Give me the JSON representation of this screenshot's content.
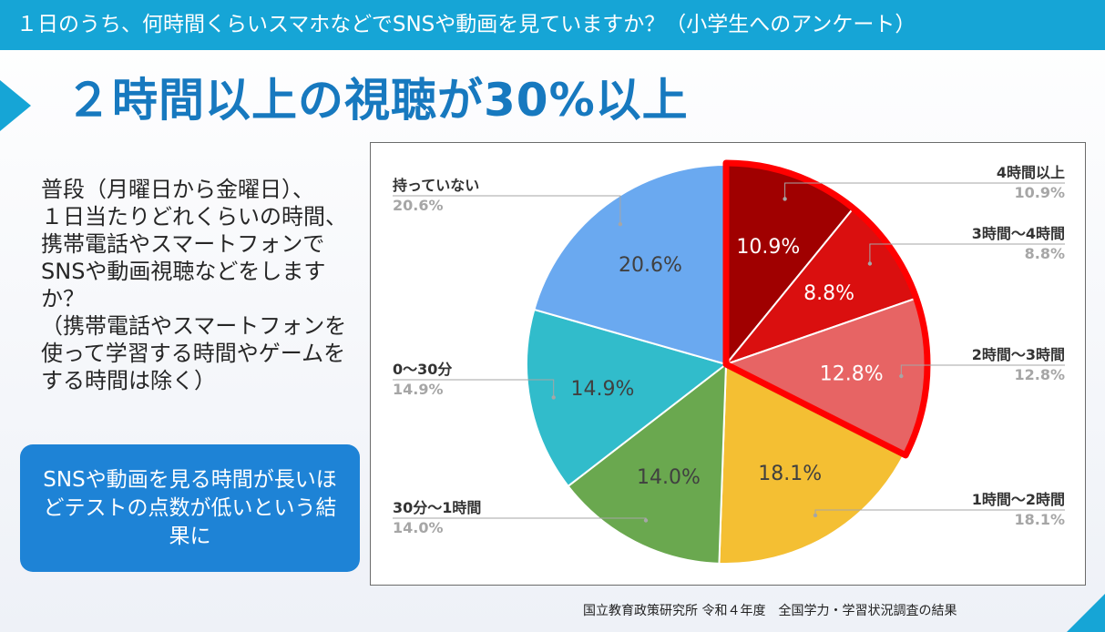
{
  "header": {
    "survey_title": "１日のうち、何時間くらいスマホなどでSNSや動画を見ていますか？（小学生へのアンケート）",
    "headline": "２時間以上の視聴が30%以上"
  },
  "question": {
    "text": "普段（月曜日から金曜日）、\n１日当たりどれくらいの時間、携帯電話やスマートフォンでSNSや動画視聴などをしますか？\n（携帯電話やスマートフォンを使って学習する時間やゲームをする時間は除く）"
  },
  "callout": {
    "text": "SNSや動画を見る時間が長いほどテストの点数が低いという結果に"
  },
  "source": "国立教育政策研究所 令和４年度　全国学力・学習状況調査の結果",
  "colors": {
    "accent": "#16a5d6",
    "headline": "#1779bf",
    "highlight_border": "#ff0000"
  },
  "chart_data": {
    "type": "pie",
    "start": "12 o'clock, clockwise",
    "highlighted": [
      "4時間以上",
      "3時間～4時間",
      "2時間～3時間"
    ],
    "slices": [
      {
        "label": "4時間以上",
        "value": 10.9,
        "display": "10.9%",
        "color": "#a00000"
      },
      {
        "label": "3時間～4時間",
        "value": 8.8,
        "display": "8.8%",
        "color": "#da0f0f"
      },
      {
        "label": "2時間～3時間",
        "value": 12.8,
        "display": "12.8%",
        "color": "#e76464"
      },
      {
        "label": "1時間～2時間",
        "value": 18.1,
        "display": "18.1%",
        "color": "#f4bf33"
      },
      {
        "label": "30分～1時間",
        "value": 14.0,
        "display": "14.0%",
        "color": "#6aa84f"
      },
      {
        "label": "0～30分",
        "value": 14.9,
        "display": "14.9%",
        "color": "#31bccb"
      },
      {
        "label": "持っていない",
        "value": 20.6,
        "display": "20.6%",
        "color": "#6aa9f0"
      }
    ]
  }
}
